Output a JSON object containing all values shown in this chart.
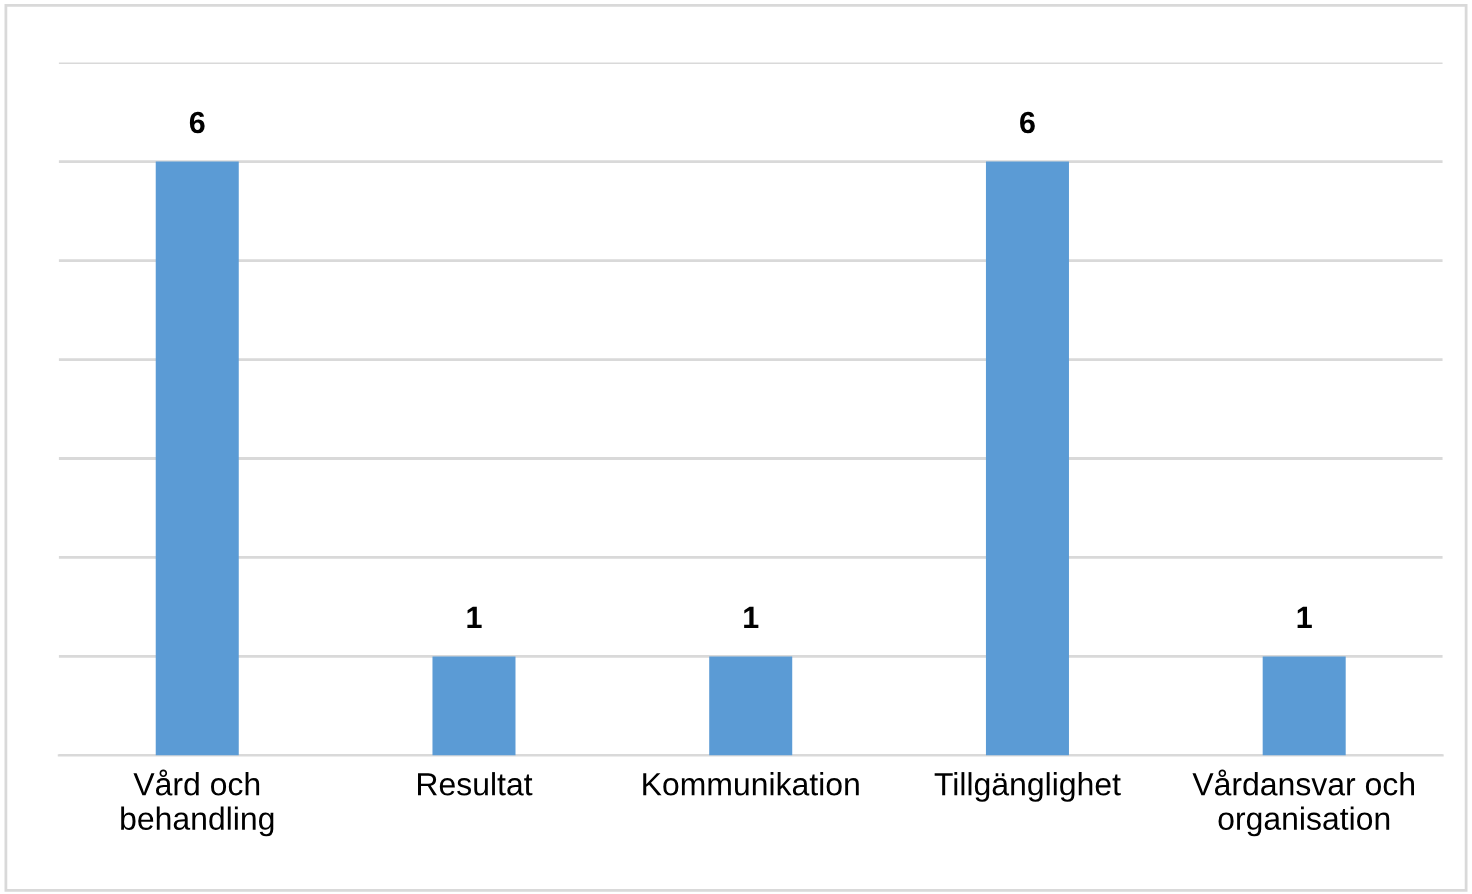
{
  "chart_data": {
    "type": "bar",
    "categories": [
      "Vård och\nbehandling",
      "Resultat",
      "Kommunikation",
      "Tillgänglighet",
      "Vårdansvar och\norganisation"
    ],
    "values": [
      6,
      1,
      1,
      6,
      1
    ],
    "color": "#5b9bd5",
    "ylim": [
      0,
      7
    ],
    "yticks": [
      {
        "value": 0,
        "label": null
      },
      {
        "value": 1,
        "label": null
      },
      {
        "value": 2,
        "label": null
      },
      {
        "value": 3,
        "label": null
      },
      {
        "value": 4,
        "label": null
      },
      {
        "value": 5,
        "label": null
      },
      {
        "value": 6,
        "label": null
      },
      {
        "value": 7,
        "label": null
      }
    ],
    "grid": "y",
    "tick_labels": "x",
    "data_labels": true
  }
}
